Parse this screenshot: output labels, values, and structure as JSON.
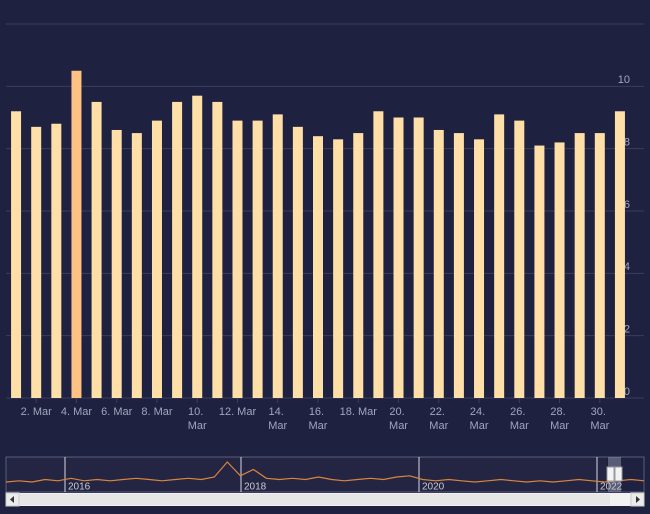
{
  "chart_data": {
    "type": "bar",
    "categories": [
      null,
      "2. Mar",
      null,
      "4. Mar",
      null,
      "6. Mar",
      null,
      "8. Mar",
      null,
      "10. Mar",
      null,
      "12. Mar",
      null,
      "14. Mar",
      null,
      "16. Mar",
      null,
      "18. Mar",
      null,
      "20. Mar",
      null,
      "22. Mar",
      null,
      "24. Mar",
      null,
      "26. Mar",
      null,
      "28. Mar",
      null,
      "30. Mar",
      null
    ],
    "values": [
      9.2,
      8.7,
      8.8,
      10.5,
      9.5,
      8.6,
      8.5,
      8.9,
      9.5,
      9.7,
      9.5,
      8.9,
      8.9,
      9.1,
      8.7,
      8.4,
      8.3,
      8.5,
      9.2,
      9.0,
      9.0,
      8.6,
      8.5,
      8.3,
      9.1,
      8.9,
      8.1,
      8.2,
      8.5,
      8.5,
      9.2
    ],
    "color": "#ffdfa8",
    "highlight_color": "#ffc285",
    "highlight_index": 3,
    "ylim": [
      0,
      12
    ],
    "yticks": [
      0,
      2,
      4,
      6,
      8,
      10
    ],
    "grid": true,
    "navigator": {
      "labels": [
        "2016",
        "2018",
        "2020",
        "2022"
      ],
      "color": "#d9843a",
      "values": [
        4,
        5,
        4,
        6,
        5,
        7,
        5,
        6,
        5,
        6,
        7,
        6,
        5,
        6,
        7,
        6,
        8,
        20,
        9,
        14,
        7,
        6,
        7,
        6,
        8,
        6,
        5,
        6,
        7,
        6,
        8,
        9,
        6,
        5,
        6,
        5,
        4,
        5,
        6,
        5,
        4,
        5,
        4,
        5,
        6,
        5,
        4,
        5,
        6,
        5
      ]
    }
  }
}
